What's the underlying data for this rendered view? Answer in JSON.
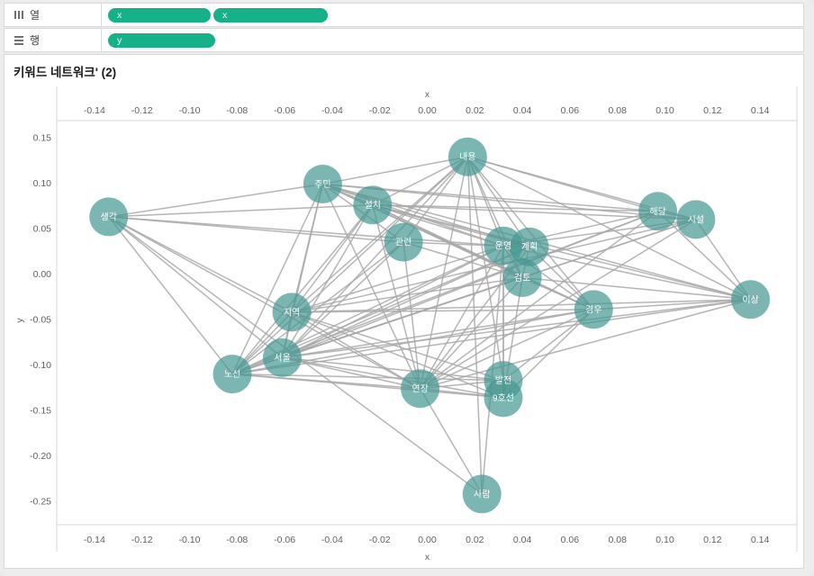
{
  "shelves": {
    "columns": {
      "label": "열",
      "pills": [
        "x",
        "x"
      ]
    },
    "rows": {
      "label": "행",
      "pills": [
        "y"
      ]
    }
  },
  "sheet": {
    "title": "키워드 네트워크' (2)"
  },
  "colors": {
    "pill_green": "#16b089",
    "node_teal": "#459791",
    "edge_gray": "#a8a8a8",
    "ruler_gray": "#d7d7d7",
    "tick_text": "#606060"
  },
  "chart_data": {
    "type": "scatter",
    "subtype": "network-graph",
    "title": "키워드 네트워크' (2)",
    "xlabel": "x",
    "ylabel": "y",
    "xlim": [
      -0.156,
      0.155
    ],
    "ylim": [
      -0.274,
      0.169
    ],
    "grid": false,
    "x_ticks": [
      -0.14,
      -0.12,
      -0.1,
      -0.08,
      -0.06,
      -0.04,
      -0.02,
      0.0,
      0.02,
      0.04,
      0.06,
      0.08,
      0.1,
      0.12,
      0.14
    ],
    "y_ticks": [
      0.15,
      0.1,
      0.05,
      0.0,
      -0.05,
      -0.1,
      -0.15,
      -0.2,
      -0.25
    ],
    "nodes": [
      {
        "label": "생각",
        "x": -0.134,
        "y": 0.063
      },
      {
        "label": "주민",
        "x": -0.044,
        "y": 0.099
      },
      {
        "label": "내용",
        "x": 0.017,
        "y": 0.129
      },
      {
        "label": "설치",
        "x": -0.023,
        "y": 0.076
      },
      {
        "label": "관련",
        "x": -0.01,
        "y": 0.035
      },
      {
        "label": "운영",
        "x": 0.032,
        "y": 0.031
      },
      {
        "label": "계획",
        "x": 0.043,
        "y": 0.03
      },
      {
        "label": "검토",
        "x": 0.04,
        "y": -0.004
      },
      {
        "label": "경우",
        "x": 0.07,
        "y": -0.039
      },
      {
        "label": "해당",
        "x": 0.097,
        "y": 0.069
      },
      {
        "label": "시설",
        "x": 0.113,
        "y": 0.06
      },
      {
        "label": "이상",
        "x": 0.136,
        "y": -0.028
      },
      {
        "label": "지역",
        "x": -0.057,
        "y": -0.042
      },
      {
        "label": "서울",
        "x": -0.061,
        "y": -0.092
      },
      {
        "label": "노선",
        "x": -0.082,
        "y": -0.11
      },
      {
        "label": "연장",
        "x": -0.003,
        "y": -0.126
      },
      {
        "label": "발전",
        "x": 0.032,
        "y": -0.117
      },
      {
        "label": "9호선",
        "x": 0.032,
        "y": -0.136
      },
      {
        "label": "사람",
        "x": 0.023,
        "y": -0.242
      }
    ],
    "edges": [
      [
        "생각",
        "주민"
      ],
      [
        "생각",
        "설치"
      ],
      [
        "생각",
        "관련"
      ],
      [
        "생각",
        "운영"
      ],
      [
        "생각",
        "지역"
      ],
      [
        "생각",
        "서울"
      ],
      [
        "생각",
        "노선"
      ],
      [
        "생각",
        "연장"
      ],
      [
        "생각",
        "사람"
      ],
      [
        "주민",
        "내용"
      ],
      [
        "주민",
        "설치"
      ],
      [
        "주민",
        "관련"
      ],
      [
        "주민",
        "운영"
      ],
      [
        "주민",
        "계획"
      ],
      [
        "주민",
        "검토"
      ],
      [
        "주민",
        "해당"
      ],
      [
        "주민",
        "시설"
      ],
      [
        "주민",
        "지역"
      ],
      [
        "주민",
        "서울"
      ],
      [
        "주민",
        "노선"
      ],
      [
        "주민",
        "연장"
      ],
      [
        "주민",
        "경우"
      ],
      [
        "주민",
        "이상"
      ],
      [
        "내용",
        "설치"
      ],
      [
        "내용",
        "관련"
      ],
      [
        "내용",
        "운영"
      ],
      [
        "내용",
        "계획"
      ],
      [
        "내용",
        "검토"
      ],
      [
        "내용",
        "해당"
      ],
      [
        "내용",
        "시설"
      ],
      [
        "내용",
        "지역"
      ],
      [
        "내용",
        "서울"
      ],
      [
        "내용",
        "노선"
      ],
      [
        "내용",
        "연장"
      ],
      [
        "내용",
        "경우"
      ],
      [
        "내용",
        "이상"
      ],
      [
        "내용",
        "발전"
      ],
      [
        "내용",
        "사람"
      ],
      [
        "설치",
        "운영"
      ],
      [
        "설치",
        "계획"
      ],
      [
        "설치",
        "검토"
      ],
      [
        "설치",
        "지역"
      ],
      [
        "설치",
        "서울"
      ],
      [
        "설치",
        "노선"
      ],
      [
        "설치",
        "연장"
      ],
      [
        "설치",
        "경우"
      ],
      [
        "설치",
        "이상"
      ],
      [
        "설치",
        "해당"
      ],
      [
        "설치",
        "시설"
      ],
      [
        "관련",
        "운영"
      ],
      [
        "관련",
        "검토"
      ],
      [
        "관련",
        "서울"
      ],
      [
        "관련",
        "노선"
      ],
      [
        "관련",
        "연장"
      ],
      [
        "운영",
        "계획"
      ],
      [
        "운영",
        "검토"
      ],
      [
        "운영",
        "지역"
      ],
      [
        "운영",
        "서울"
      ],
      [
        "운영",
        "노선"
      ],
      [
        "운영",
        "연장"
      ],
      [
        "운영",
        "발전"
      ],
      [
        "운영",
        "9호선"
      ],
      [
        "운영",
        "경우"
      ],
      [
        "운영",
        "이상"
      ],
      [
        "운영",
        "해당"
      ],
      [
        "운영",
        "시설"
      ],
      [
        "운영",
        "사람"
      ],
      [
        "계획",
        "검토"
      ],
      [
        "계획",
        "서울"
      ],
      [
        "계획",
        "노선"
      ],
      [
        "계획",
        "연장"
      ],
      [
        "계획",
        "경우"
      ],
      [
        "검토",
        "지역"
      ],
      [
        "검토",
        "서울"
      ],
      [
        "검토",
        "노선"
      ],
      [
        "검토",
        "연장"
      ],
      [
        "검토",
        "9호선"
      ],
      [
        "검토",
        "경우"
      ],
      [
        "검토",
        "이상"
      ],
      [
        "지역",
        "서울"
      ],
      [
        "지역",
        "노선"
      ],
      [
        "지역",
        "연장"
      ],
      [
        "지역",
        "발전"
      ],
      [
        "지역",
        "9호선"
      ],
      [
        "지역",
        "경우"
      ],
      [
        "지역",
        "이상"
      ],
      [
        "지역",
        "시설"
      ],
      [
        "서울",
        "노선"
      ],
      [
        "서울",
        "연장"
      ],
      [
        "서울",
        "발전"
      ],
      [
        "서울",
        "9호선"
      ],
      [
        "서울",
        "경우"
      ],
      [
        "서울",
        "이상"
      ],
      [
        "서울",
        "해당"
      ],
      [
        "서울",
        "시설"
      ],
      [
        "노선",
        "연장"
      ],
      [
        "노선",
        "발전"
      ],
      [
        "노선",
        "9호선"
      ],
      [
        "노선",
        "경우"
      ],
      [
        "노선",
        "이상"
      ],
      [
        "노선",
        "해당"
      ],
      [
        "노선",
        "시설"
      ],
      [
        "연장",
        "발전"
      ],
      [
        "연장",
        "9호선"
      ],
      [
        "연장",
        "경우"
      ],
      [
        "연장",
        "이상"
      ],
      [
        "연장",
        "해당"
      ],
      [
        "연장",
        "시설"
      ],
      [
        "연장",
        "사람"
      ],
      [
        "발전",
        "9호선"
      ],
      [
        "발전",
        "경우"
      ],
      [
        "9호선",
        "경우"
      ],
      [
        "해당",
        "시설"
      ],
      [
        "해당",
        "이상"
      ],
      [
        "시설",
        "이상"
      ],
      [
        "경우",
        "이상"
      ]
    ]
  }
}
